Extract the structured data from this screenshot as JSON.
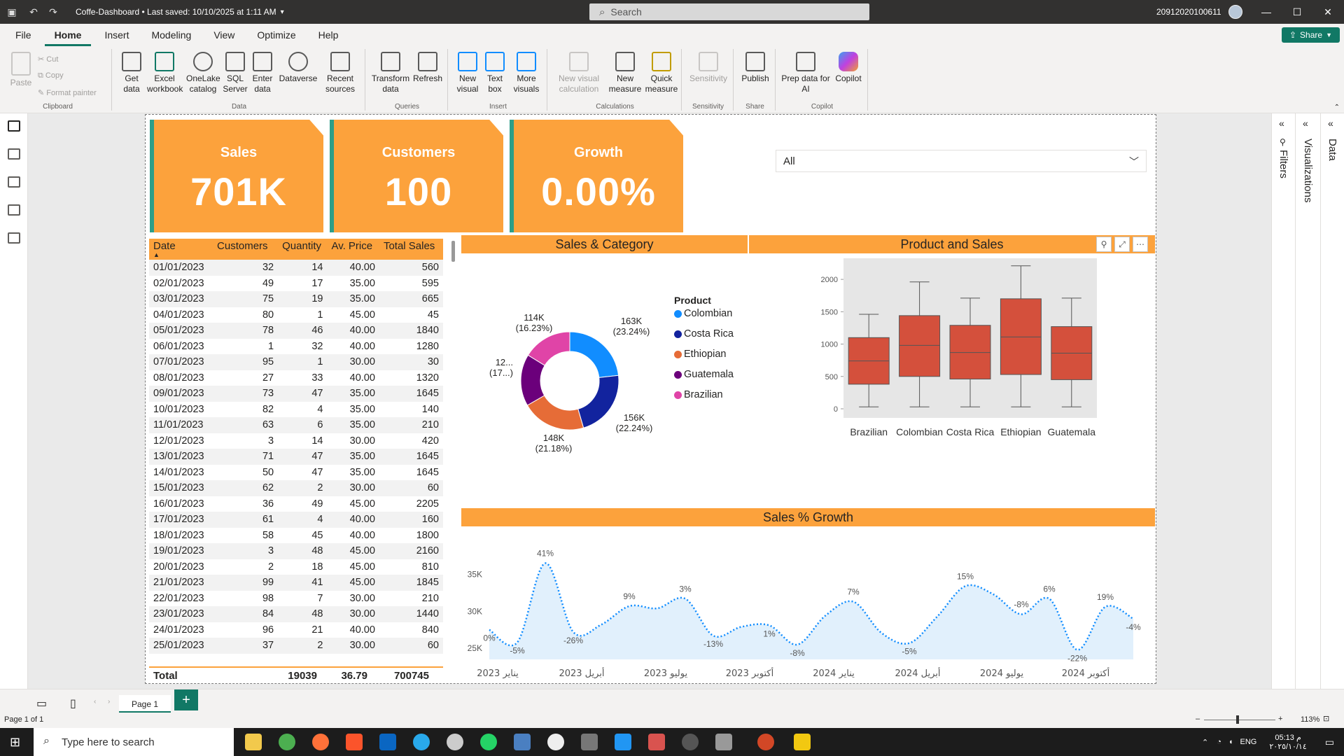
{
  "app": {
    "title": "Coffe-Dashboard • Last saved: 10/10/2025 at 1:11 AM",
    "search_placeholder": "Search",
    "user": "20912020100611",
    "share_label": "Share"
  },
  "menu": [
    "File",
    "Home",
    "Insert",
    "Modeling",
    "View",
    "Optimize",
    "Help"
  ],
  "ribbon": {
    "clipboard": {
      "paste": "Paste",
      "cut": "Cut",
      "copy": "Copy",
      "format_painter": "Format painter",
      "label": "Clipboard"
    },
    "data": {
      "get_data": "Get data",
      "excel": "Excel workbook",
      "onelake": "OneLake catalog",
      "sql": "SQL Server",
      "enter": "Enter data",
      "dataverse": "Dataverse",
      "recent": "Recent sources",
      "label": "Data"
    },
    "queries": {
      "transform": "Transform data",
      "refresh": "Refresh",
      "label": "Queries"
    },
    "insert": {
      "new_visual": "New visual",
      "text_box": "Text box",
      "more_visuals": "More visuals",
      "label": "Insert"
    },
    "calculations": {
      "new_visual_calc": "New visual calculation",
      "new_measure": "New measure",
      "quick_measure": "Quick measure",
      "label": "Calculations"
    },
    "sensitivity": {
      "sensitivity": "Sensitivity",
      "label": "Sensitivity"
    },
    "share": {
      "publish": "Publish",
      "label": "Share"
    },
    "copilot": {
      "prep": "Prep data for AI",
      "copilot": "Copilot",
      "label": "Copilot"
    }
  },
  "kpis": [
    {
      "label": "Sales",
      "value": "701K"
    },
    {
      "label": "Customers",
      "value": "100"
    },
    {
      "label": "Growth",
      "value": "0.00%"
    }
  ],
  "slicer": {
    "value": "All"
  },
  "table": {
    "headers": [
      "Date",
      "Customers",
      "Quantity",
      "Av. Price",
      "Total Sales"
    ],
    "rows": [
      [
        "01/01/2023",
        "32",
        "14",
        "40.00",
        "560"
      ],
      [
        "02/01/2023",
        "49",
        "17",
        "35.00",
        "595"
      ],
      [
        "03/01/2023",
        "75",
        "19",
        "35.00",
        "665"
      ],
      [
        "04/01/2023",
        "80",
        "1",
        "45.00",
        "45"
      ],
      [
        "05/01/2023",
        "78",
        "46",
        "40.00",
        "1840"
      ],
      [
        "06/01/2023",
        "1",
        "32",
        "40.00",
        "1280"
      ],
      [
        "07/01/2023",
        "95",
        "1",
        "30.00",
        "30"
      ],
      [
        "08/01/2023",
        "27",
        "33",
        "40.00",
        "1320"
      ],
      [
        "09/01/2023",
        "73",
        "47",
        "35.00",
        "1645"
      ],
      [
        "10/01/2023",
        "82",
        "4",
        "35.00",
        "140"
      ],
      [
        "11/01/2023",
        "63",
        "6",
        "35.00",
        "210"
      ],
      [
        "12/01/2023",
        "3",
        "14",
        "30.00",
        "420"
      ],
      [
        "13/01/2023",
        "71",
        "47",
        "35.00",
        "1645"
      ],
      [
        "14/01/2023",
        "50",
        "47",
        "35.00",
        "1645"
      ],
      [
        "15/01/2023",
        "62",
        "2",
        "30.00",
        "60"
      ],
      [
        "16/01/2023",
        "36",
        "49",
        "45.00",
        "2205"
      ],
      [
        "17/01/2023",
        "61",
        "4",
        "40.00",
        "160"
      ],
      [
        "18/01/2023",
        "58",
        "45",
        "40.00",
        "1800"
      ],
      [
        "19/01/2023",
        "3",
        "48",
        "45.00",
        "2160"
      ],
      [
        "20/01/2023",
        "2",
        "18",
        "45.00",
        "810"
      ],
      [
        "21/01/2023",
        "99",
        "41",
        "45.00",
        "1845"
      ],
      [
        "22/01/2023",
        "98",
        "7",
        "30.00",
        "210"
      ],
      [
        "23/01/2023",
        "84",
        "48",
        "30.00",
        "1440"
      ],
      [
        "24/01/2023",
        "96",
        "21",
        "40.00",
        "840"
      ],
      [
        "25/01/2023",
        "37",
        "2",
        "30.00",
        "60"
      ]
    ],
    "total": {
      "label": "Total",
      "customers": "",
      "quantity": "19039",
      "avg_price": "36.79",
      "total_sales": "700745"
    }
  },
  "donut_chart": {
    "title": "Sales & Category",
    "legend_title": "Product",
    "slices": [
      {
        "name": "Colombian",
        "label": "163K",
        "pct": "(23.24%)",
        "value": 23.24,
        "color": "#118dff"
      },
      {
        "name": "Costa Rica",
        "label": "156K",
        "pct": "(22.24%)",
        "value": 22.24,
        "color": "#12239e"
      },
      {
        "name": "Ethiopian",
        "label": "148K",
        "pct": "(21.18%)",
        "value": 21.18,
        "color": "#e66c37"
      },
      {
        "name": "Guatemala",
        "label": "12...",
        "pct": "(17...)",
        "value": 17.1,
        "color": "#6b007b"
      },
      {
        "name": "Brazilian",
        "label": "114K",
        "pct": "(16.23%)",
        "value": 16.23,
        "color": "#e044a7"
      }
    ]
  },
  "box_chart": {
    "title": "Product and Sales",
    "y_ticks": [
      "2000",
      "1500",
      "1000",
      "500",
      "0"
    ],
    "categories": [
      "Brazilian",
      "Colombian",
      "Costa Rica",
      "Ethiopian",
      "Guatemala"
    ],
    "color": "#d4503c",
    "boxes": [
      {
        "min": 30,
        "q1": 380,
        "median": 740,
        "q3": 1100,
        "max": 1460
      },
      {
        "min": 30,
        "q1": 500,
        "median": 980,
        "q3": 1440,
        "max": 1960
      },
      {
        "min": 30,
        "q1": 460,
        "median": 870,
        "q3": 1290,
        "max": 1710
      },
      {
        "min": 30,
        "q1": 530,
        "median": 1110,
        "q3": 1700,
        "max": 2210
      },
      {
        "min": 30,
        "q1": 450,
        "median": 860,
        "q3": 1270,
        "max": 1710
      }
    ],
    "ymax": 2250
  },
  "chart_data": {
    "type": "area",
    "title": "Sales % Growth",
    "y_ticks": [
      "35K",
      "30K",
      "25K"
    ],
    "ylim": [
      23500,
      37500
    ],
    "x_tick_labels": [
      "يناير 2023",
      "أبريل 2023",
      "يوليو 2023",
      "أكتوبر 2023",
      "يناير 2024",
      "أبريل 2024",
      "يوليو 2024",
      "أكتوبر 2024"
    ],
    "x": [
      0,
      1,
      2,
      3,
      4,
      5,
      6,
      7,
      8,
      9,
      10,
      11,
      12,
      13,
      14,
      15,
      16,
      17,
      18,
      19,
      20,
      21,
      22,
      23
    ],
    "values": [
      27500,
      25800,
      36500,
      27200,
      28200,
      30700,
      30400,
      31700,
      26700,
      27900,
      28100,
      25500,
      29400,
      31300,
      27100,
      25700,
      29300,
      33400,
      32300,
      29600,
      31700,
      24800,
      30600,
      29000
    ],
    "labels": [
      "0%",
      "-5%",
      "41%",
      "-26%",
      "",
      "9%",
      "",
      "3%",
      "-13%",
      "",
      "1%",
      "-8%",
      "",
      "7%",
      "",
      "-5%",
      "",
      "15%",
      "",
      "-8%",
      "6%",
      "-22%",
      "19%",
      "-4%"
    ]
  },
  "page": {
    "tab": "Page 1",
    "status": "Page 1 of 1",
    "zoom": "113%"
  },
  "panels": {
    "filters": "Filters",
    "visualizations": "Visualizations",
    "data": "Data"
  },
  "taskbar": {
    "search": "Type here to search",
    "lang": "ENG",
    "time": "05:13 م",
    "date": "٢٠٢٥/١٠/١٤"
  }
}
